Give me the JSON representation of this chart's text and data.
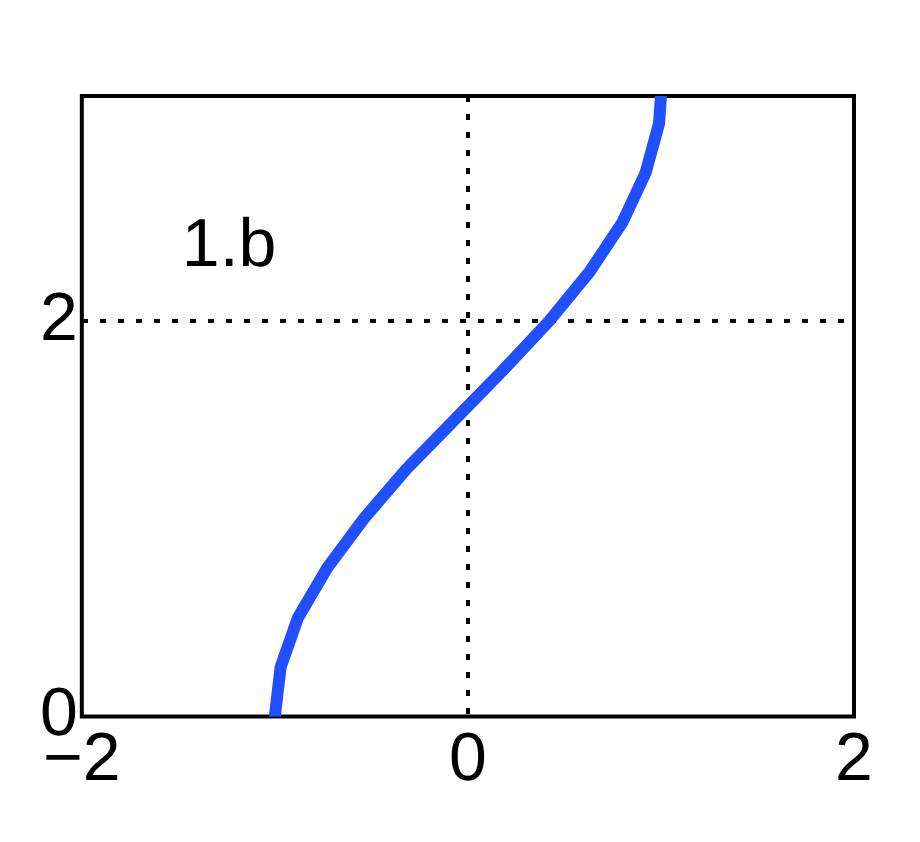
{
  "chart_data": {
    "type": "line",
    "annotations": [
      "1.b"
    ],
    "series": [
      {
        "color": "#1f4fff",
        "x": [
          -1,
          -0.97,
          -0.88,
          -0.73,
          -0.54,
          -0.32,
          -0.07,
          0.18,
          0.42,
          0.63,
          0.8,
          0.92,
          0.99,
          1.0
        ],
        "values": [
          0,
          0.25,
          0.5,
          0.75,
          1,
          1.25,
          1.5,
          1.75,
          2,
          2.25,
          2.5,
          2.75,
          3,
          3.14
        ]
      }
    ],
    "xlim": [
      -2,
      2
    ],
    "xticks": [
      -2,
      0,
      2
    ],
    "ylim": [
      0,
      3.14
    ],
    "yticks": [
      0,
      2
    ],
    "grid": true,
    "line_style": "solid",
    "marker": "none",
    "legend": false
  }
}
